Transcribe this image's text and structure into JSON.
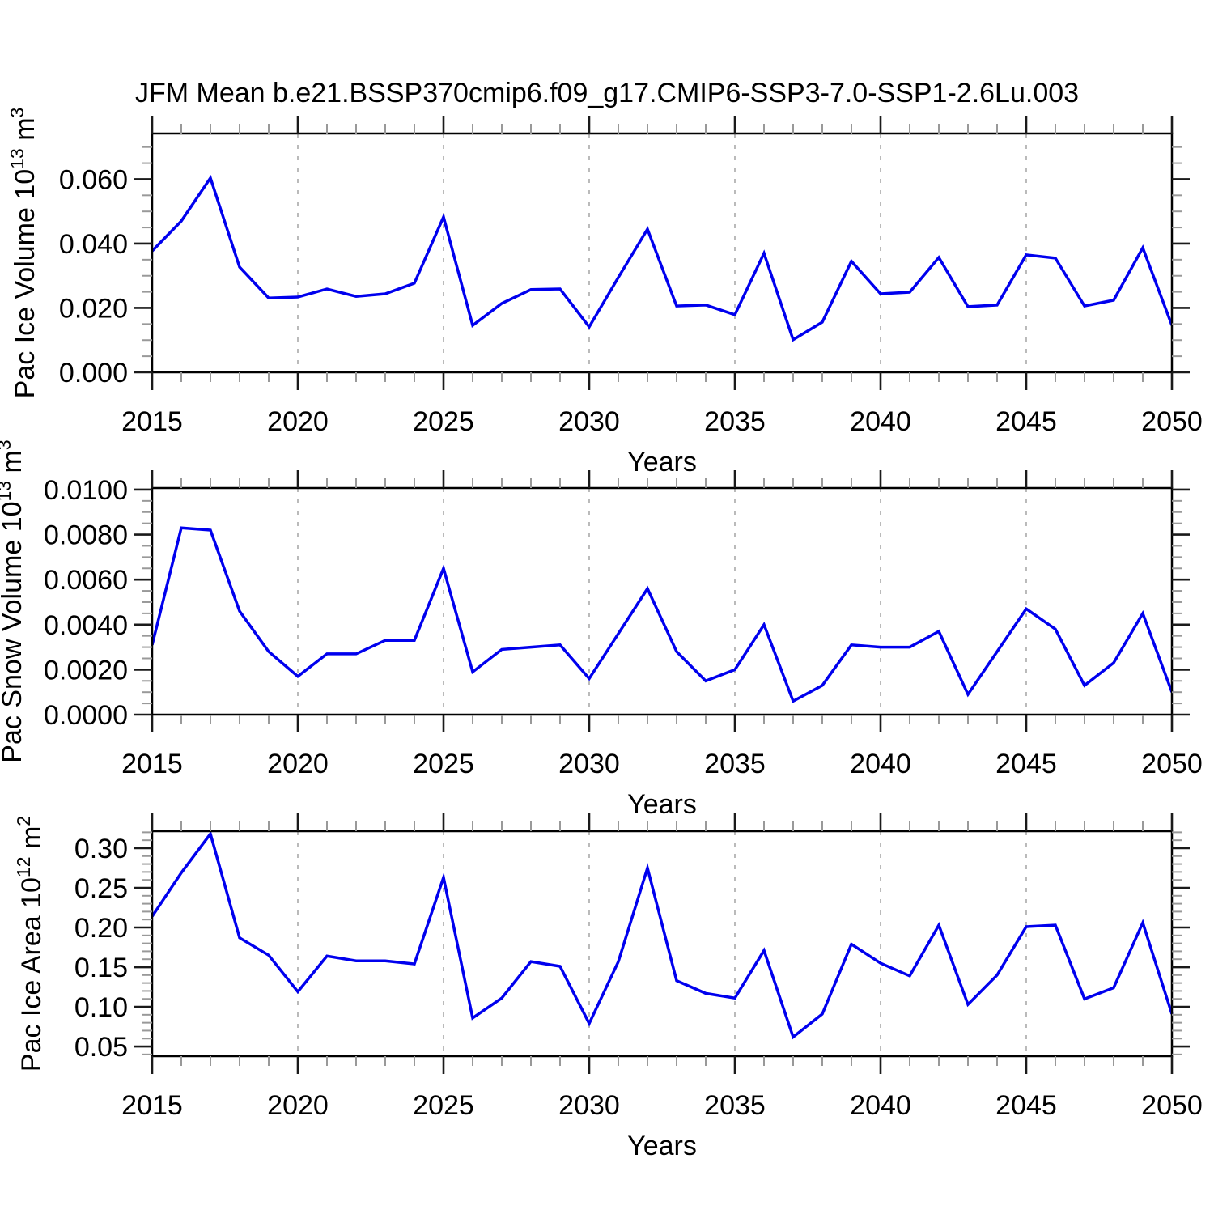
{
  "title": "JFM Mean b.e21.BSSP370cmip6.f09_g17.CMIP6-SSP3-7.0-SSP1-2.6Lu.003",
  "colors": {
    "line": "#0000ee",
    "frame": "#000000",
    "major_tick": "#1a1a1a",
    "minor_tick": "#999999",
    "grid": "#aaaaaa",
    "text": "#000000"
  },
  "chart_data": [
    {
      "type": "line",
      "title": "JFM Mean b.e21.BSSP370cmip6.f09_g17.CMIP6-SSP3-7.0-SSP1-2.6Lu.003",
      "ylabel": "Pac Ice Volume 10^13 m^3",
      "ylabel_parts": [
        {
          "t": "Pac Ice Volume 10"
        },
        {
          "t": "13",
          "sup": true
        },
        {
          "t": " m"
        },
        {
          "t": "3",
          "sup": true
        }
      ],
      "xlabel": "Years",
      "x": [
        2015,
        2016,
        2017,
        2018,
        2019,
        2020,
        2021,
        2022,
        2023,
        2024,
        2025,
        2026,
        2027,
        2028,
        2029,
        2030,
        2031,
        2032,
        2033,
        2034,
        2035,
        2036,
        2037,
        2038,
        2039,
        2040,
        2041,
        2042,
        2043,
        2044,
        2045,
        2046,
        2047,
        2048,
        2049,
        2050
      ],
      "values": [
        0.0377,
        0.047,
        0.0604,
        0.0327,
        0.0231,
        0.0234,
        0.0259,
        0.0236,
        0.0244,
        0.0277,
        0.0483,
        0.0146,
        0.0214,
        0.0257,
        0.0259,
        0.0141,
        0.0295,
        0.0445,
        0.0206,
        0.0209,
        0.0179,
        0.037,
        0.0101,
        0.0156,
        0.0345,
        0.0244,
        0.0249,
        0.0357,
        0.0204,
        0.0209,
        0.0365,
        0.0355,
        0.0206,
        0.0224,
        0.0387,
        0.0146
      ],
      "xlim": [
        2015,
        2050
      ],
      "ylim": [
        0.0,
        0.0742
      ],
      "xticks": [
        2015,
        2020,
        2025,
        2030,
        2035,
        2040,
        2045,
        2050
      ],
      "xtick_labels": [
        "2015",
        "2020",
        "2025",
        "2030",
        "2035",
        "2040",
        "2045",
        "2050"
      ],
      "xminor_step": 1,
      "yticks": [
        0.0,
        0.02,
        0.04,
        0.06
      ],
      "ytick_labels": [
        "0.000",
        "0.020",
        "0.040",
        "0.060"
      ],
      "yminor_step": 0.005,
      "grid_x": [
        2020,
        2025,
        2030,
        2035,
        2040,
        2045
      ],
      "grid_on": true,
      "legend": "none"
    },
    {
      "type": "line",
      "title": "",
      "ylabel": "Pac Snow Volume 10^13 m^3",
      "ylabel_parts": [
        {
          "t": "Pac Snow Volume 10"
        },
        {
          "t": "13",
          "sup": true
        },
        {
          "t": " m"
        },
        {
          "t": "3",
          "sup": true
        }
      ],
      "xlabel": "Years",
      "x": [
        2015,
        2016,
        2017,
        2018,
        2019,
        2020,
        2021,
        2022,
        2023,
        2024,
        2025,
        2026,
        2027,
        2028,
        2029,
        2030,
        2031,
        2032,
        2033,
        2034,
        2035,
        2036,
        2037,
        2038,
        2039,
        2040,
        2041,
        2042,
        2043,
        2044,
        2045,
        2046,
        2047,
        2048,
        2049,
        2050
      ],
      "values": [
        0.0031,
        0.0083,
        0.0082,
        0.0046,
        0.0028,
        0.0017,
        0.0027,
        0.0027,
        0.0033,
        0.0033,
        0.0065,
        0.0019,
        0.0029,
        0.003,
        0.0031,
        0.0016,
        0.0036,
        0.0056,
        0.0028,
        0.0015,
        0.002,
        0.004,
        0.0006,
        0.0013,
        0.0031,
        0.003,
        0.003,
        0.0037,
        0.0009,
        0.0028,
        0.0047,
        0.0038,
        0.0013,
        0.0023,
        0.0045,
        0.001
      ],
      "xlim": [
        2015,
        2050
      ],
      "ylim": [
        0.0,
        0.01007
      ],
      "xticks": [
        2015,
        2020,
        2025,
        2030,
        2035,
        2040,
        2045,
        2050
      ],
      "xtick_labels": [
        "2015",
        "2020",
        "2025",
        "2030",
        "2035",
        "2040",
        "2045",
        "2050"
      ],
      "xminor_step": 1,
      "yticks": [
        0.0,
        0.002,
        0.004,
        0.006,
        0.008,
        0.01
      ],
      "ytick_labels": [
        "0.0000",
        "0.0020",
        "0.0040",
        "0.0060",
        "0.0080",
        "0.0100"
      ],
      "yminor_step": 0.0005,
      "grid_x": [
        2020,
        2025,
        2030,
        2035,
        2040,
        2045
      ],
      "grid_on": true,
      "legend": "none"
    },
    {
      "type": "line",
      "title": "",
      "ylabel": "Pac Ice Area 10^12 m^2",
      "ylabel_parts": [
        {
          "t": "Pac Ice Area 10"
        },
        {
          "t": "12",
          "sup": true
        },
        {
          "t": " m"
        },
        {
          "t": "2",
          "sup": true
        }
      ],
      "xlabel": "Years",
      "x": [
        2015,
        2016,
        2017,
        2018,
        2019,
        2020,
        2021,
        2022,
        2023,
        2024,
        2025,
        2026,
        2027,
        2028,
        2029,
        2030,
        2031,
        2032,
        2033,
        2034,
        2035,
        2036,
        2037,
        2038,
        2039,
        2040,
        2041,
        2042,
        2043,
        2044,
        2045,
        2046,
        2047,
        2048,
        2049,
        2050
      ],
      "values": [
        0.214,
        0.269,
        0.318,
        0.187,
        0.165,
        0.119,
        0.164,
        0.158,
        0.158,
        0.154,
        0.263,
        0.086,
        0.111,
        0.157,
        0.151,
        0.079,
        0.157,
        0.275,
        0.133,
        0.117,
        0.111,
        0.171,
        0.062,
        0.091,
        0.179,
        0.155,
        0.139,
        0.203,
        0.103,
        0.14,
        0.201,
        0.203,
        0.11,
        0.124,
        0.206,
        0.091
      ],
      "xlim": [
        2015,
        2050
      ],
      "ylim": [
        0.0378,
        0.3214
      ],
      "xticks": [
        2015,
        2020,
        2025,
        2030,
        2035,
        2040,
        2045,
        2050
      ],
      "xtick_labels": [
        "2015",
        "2020",
        "2025",
        "2030",
        "2035",
        "2040",
        "2045",
        "2050"
      ],
      "xminor_step": 1,
      "yticks": [
        0.05,
        0.1,
        0.15,
        0.2,
        0.25,
        0.3
      ],
      "ytick_labels": [
        "0.05",
        "0.10",
        "0.15",
        "0.20",
        "0.25",
        "0.30"
      ],
      "yminor_step": 0.01,
      "grid_x": [
        2020,
        2025,
        2030,
        2035,
        2040,
        2045
      ],
      "grid_on": true,
      "legend": "none"
    }
  ]
}
